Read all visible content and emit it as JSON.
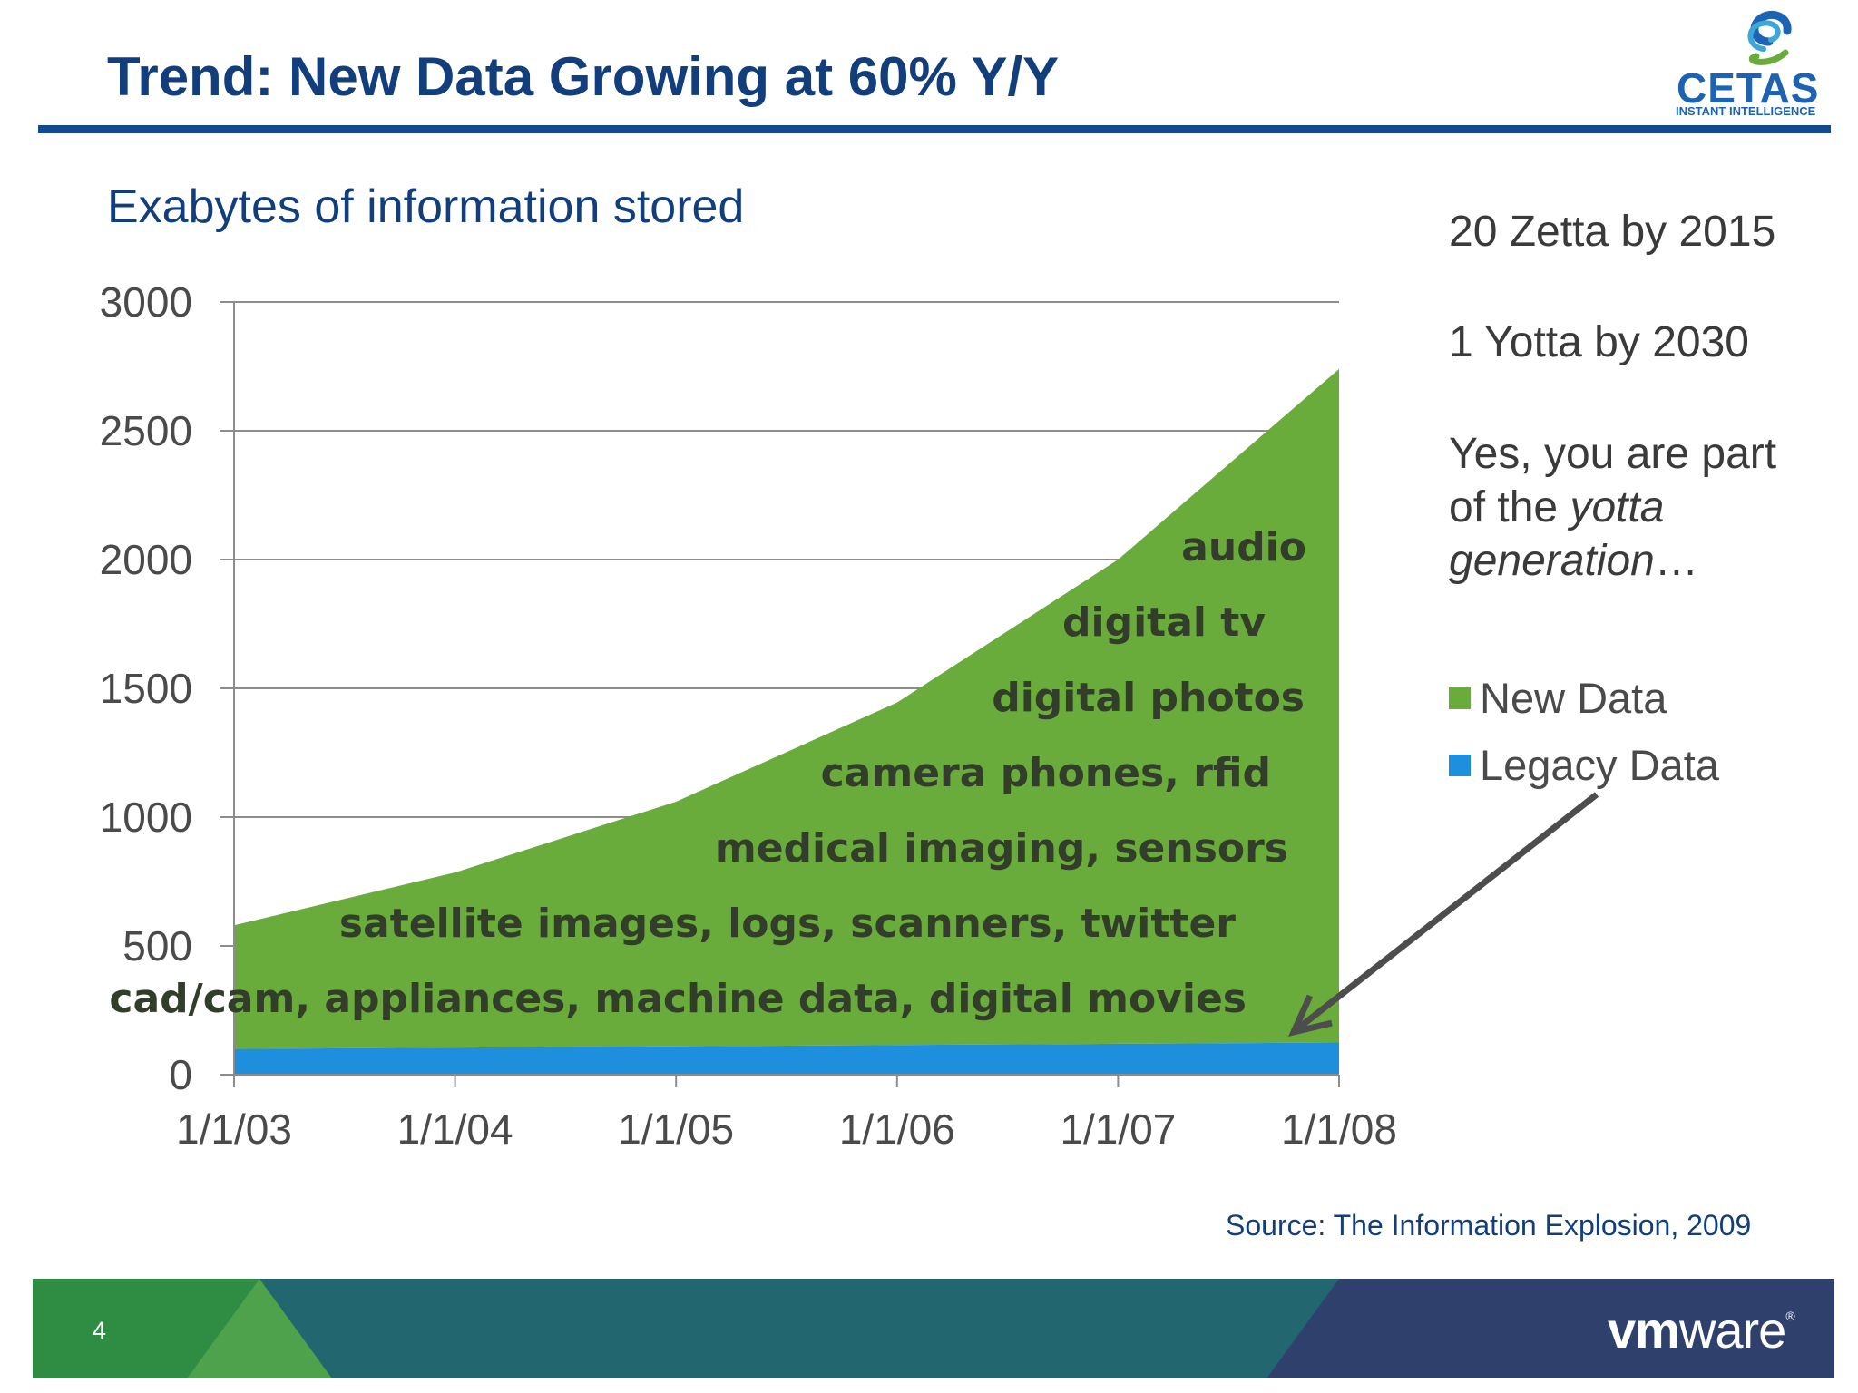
{
  "slide": {
    "title": "Trend: New Data Growing at 60% Y/Y",
    "page_number": "4"
  },
  "logo": {
    "name": "CETAS",
    "tagline": "INSTANT INTELLIGENCE"
  },
  "footer": {
    "brand_vm": "vm",
    "brand_ware": "ware",
    "brand_mark": "®"
  },
  "sidebar": {
    "line1": "20 Zetta by 2015",
    "line2": "1 Yotta by 2030",
    "line3a": "Yes, you are part",
    "line3b_prefix": "of the ",
    "line3b_em": "yotta",
    "line3c_em": "generation",
    "line3c_suffix": "…"
  },
  "source": "Source: The Information Explosion, 2009",
  "colors": {
    "new_data": "#6aac3c",
    "legacy_data": "#1e8fdc",
    "title": "#123f7c",
    "footer_green": "#2e8d43",
    "footer_teal": "#22666f",
    "footer_navy": "#30406c"
  },
  "chart_data": {
    "type": "area",
    "stacked": true,
    "title": "Exabytes of information stored",
    "xlabel": "",
    "ylabel": "",
    "x": [
      "1/1/03",
      "1/1/04",
      "1/1/05",
      "1/1/06",
      "1/1/07",
      "1/1/08"
    ],
    "ylim": [
      0,
      3000
    ],
    "yticks": [
      0,
      500,
      1000,
      1500,
      2000,
      2500,
      3000
    ],
    "grid": true,
    "legend_position": "right",
    "series": [
      {
        "name": "Legacy Data",
        "values": [
          100,
          105,
          110,
          115,
          120,
          125
        ]
      },
      {
        "name": "New Data",
        "values": [
          480,
          680,
          950,
          1330,
          1880,
          2615
        ]
      }
    ],
    "annotations": [
      "audio",
      "digital tv",
      "digital photos",
      "camera phones, rfid",
      "medical imaging, sensors",
      "satellite images, logs, scanners, twitter",
      "cad/cam, appliances, machine data, digital movies"
    ]
  }
}
